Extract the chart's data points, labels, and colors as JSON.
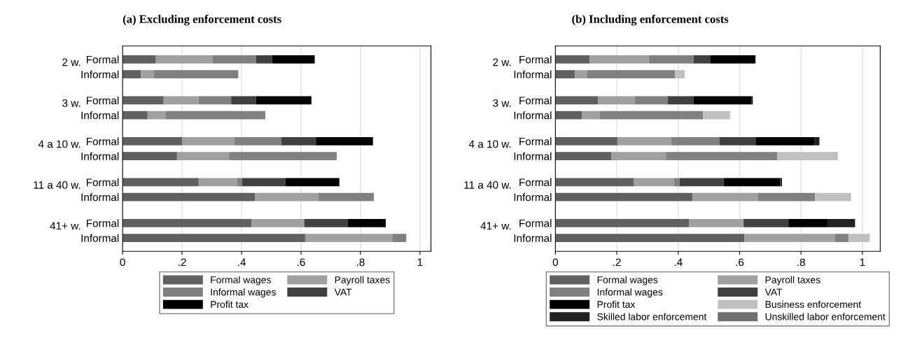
{
  "chart_data": [
    {
      "type": "bar",
      "orientation": "horizontal",
      "stacked": true,
      "title": "(a) Excluding enforcement costs",
      "categories": [
        "Formal",
        "Informal",
        "Formal",
        "Informal",
        "Formal",
        "Informal",
        "Formal",
        "Informal",
        "Formal",
        "Informal"
      ],
      "annotations": [
        "2 w.",
        "3 w.",
        "4 a 10 w.",
        "11 a 40 w.",
        "41+ w."
      ],
      "series": [
        {
          "name": "Formal wages",
          "color": "#606060",
          "values": [
            0.112,
            0.062,
            0.138,
            0.084,
            0.2,
            0.183,
            0.256,
            0.445,
            0.434,
            0.614
          ]
        },
        {
          "name": "Payroll taxes",
          "color": "#a0a0a0",
          "values": [
            0.191,
            0.042,
            0.118,
            0.06,
            0.176,
            0.175,
            0.129,
            0.213,
            0.177,
            0.293
          ]
        },
        {
          "name": "Informal wages",
          "color": "#808080",
          "values": [
            0.146,
            0.285,
            0.109,
            0.336,
            0.157,
            0.362,
            0.017,
            0.187,
            0,
            0.047
          ]
        },
        {
          "name": "VAT",
          "color": "#404040",
          "values": [
            0.054,
            0,
            0.084,
            0,
            0.117,
            0,
            0.145,
            0,
            0.146,
            0
          ]
        },
        {
          "name": "Profit tax",
          "color": "#000000",
          "values": [
            0.143,
            0,
            0.186,
            0,
            0.192,
            0,
            0.182,
            0,
            0.128,
            0
          ]
        }
      ],
      "xlim": [
        0,
        1.037
      ],
      "xticks": [
        0,
        {
          "value": 0.2,
          "label": ".2"
        },
        {
          "value": 0.4,
          "label": ".4"
        },
        {
          "value": 0.6,
          "label": ".6"
        },
        {
          "value": 0.8,
          "label": ".8"
        },
        1
      ],
      "grid": "x",
      "legend": "bottom"
    },
    {
      "type": "bar",
      "orientation": "horizontal",
      "stacked": true,
      "title": "(b) Including enforcement costs",
      "categories": [
        "Formal",
        "Informal",
        "Formal",
        "Informal",
        "Formal",
        "Informal",
        "Formal",
        "Informal",
        "Formal",
        "Informal"
      ],
      "annotations": [
        "2 w.",
        "3 w.",
        "4 a 10 w.",
        "11 a 40 w.",
        "41+ w."
      ],
      "series": [
        {
          "name": "Formal wages",
          "color": "#606060",
          "values": [
            0.112,
            0.064,
            0.139,
            0.086,
            0.202,
            0.183,
            0.256,
            0.446,
            0.435,
            0.616
          ]
        },
        {
          "name": "Payroll taxes",
          "color": "#a0a0a0",
          "values": [
            0.192,
            0.04,
            0.119,
            0.059,
            0.175,
            0.177,
            0.131,
            0.213,
            0.178,
            0.294
          ]
        },
        {
          "name": "Informal wages",
          "color": "#808080",
          "values": [
            0.146,
            0.286,
            0.108,
            0.336,
            0.157,
            0.362,
            0.017,
            0.187,
            0,
            0.045
          ]
        },
        {
          "name": "VAT",
          "color": "#404040",
          "values": [
            0.054,
            0,
            0.084,
            0,
            0.118,
            0,
            0.144,
            0,
            0.146,
            0
          ]
        },
        {
          "name": "Profit tax",
          "color": "#000000",
          "values": [
            0.145,
            0,
            0.188,
            0,
            0.191,
            0,
            0.184,
            0,
            0.127,
            0
          ]
        },
        {
          "name": "Business enforcement",
          "color": "#c0c0c0",
          "values": [
            0,
            0.031,
            0,
            0.088,
            0,
            0.198,
            0,
            0.117,
            0,
            0.069
          ]
        },
        {
          "name": "Skilled labor enforcement",
          "color": "#222222",
          "values": [
            0.003,
            0,
            0.005,
            0,
            0.017,
            0,
            0.006,
            0,
            0.09,
            0
          ]
        },
        {
          "name": "Unskilled labor enforcement",
          "color": "#707070",
          "values": [
            0,
            0,
            0,
            0,
            0,
            0,
            0,
            0,
            0,
            0
          ]
        }
      ],
      "xlim": [
        0,
        1.058
      ],
      "xticks": [
        0,
        {
          "value": 0.2,
          "label": ".2"
        },
        {
          "value": 0.4,
          "label": ".4"
        },
        {
          "value": 0.6,
          "label": ".6"
        },
        {
          "value": 0.8,
          "label": ".8"
        },
        1
      ],
      "grid": "x",
      "legend": "bottom"
    }
  ]
}
